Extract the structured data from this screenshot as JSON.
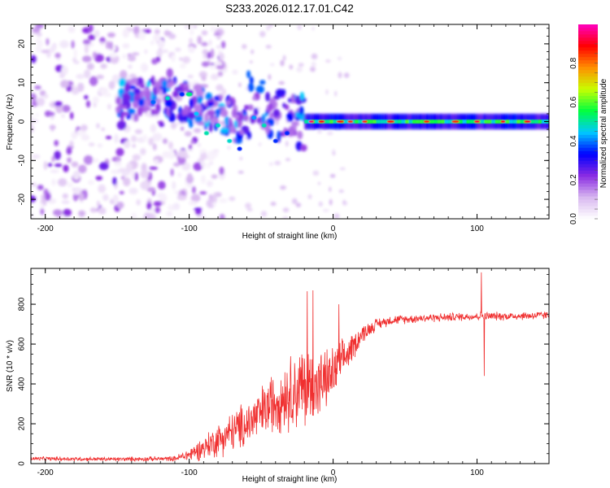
{
  "title": "S233.2026.012.17.01.C42",
  "chart_data": [
    {
      "type": "heatmap",
      "name": "spectrogram",
      "xlabel": "Height of straight line (km)",
      "ylabel": "Frequency (Hz)",
      "xlim": [
        -210,
        150
      ],
      "ylim": [
        -25,
        25
      ],
      "xticks": [
        -200,
        -100,
        0,
        100
      ],
      "xtick_labels": [
        "-200",
        "-100",
        "0",
        "100"
      ],
      "yticks": [
        -20,
        -10,
        0,
        10,
        20
      ],
      "ytick_labels": [
        "-20",
        "-10",
        "0",
        "10",
        "20"
      ],
      "colorbar": {
        "label": "Normalized spectral amplitude",
        "range": [
          0.0,
          1.0
        ],
        "ticks": [
          0.0,
          0.2,
          0.4,
          0.6,
          0.8
        ],
        "tick_labels": [
          "0.0",
          "0.2",
          "0.4",
          "0.6",
          "0.8"
        ],
        "colors": [
          "#ffffff",
          "#d8b8f0",
          "#8a2be2",
          "#0000ff",
          "#00c8ff",
          "#00ff40",
          "#c8ff00",
          "#ff9000",
          "#ff0000",
          "#ff00c0"
        ]
      },
      "features": [
        {
          "region": "noise",
          "x_range": [
            -210,
            -100
          ],
          "y_range": [
            -25,
            25
          ],
          "amplitude": [
            0.02,
            0.25
          ]
        },
        {
          "region": "dispersed-band",
          "x_range": [
            -150,
            -20
          ],
          "y_range": [
            -12,
            10
          ],
          "amplitude": [
            0.15,
            0.45
          ]
        },
        {
          "region": "narrow-band",
          "x_range": [
            -20,
            150
          ],
          "center_hz": 0,
          "halfwidth_hz": 2,
          "amplitude": [
            0.3,
            0.95
          ]
        }
      ]
    },
    {
      "type": "line",
      "name": "snr",
      "xlabel": "Height of straight line (km)",
      "ylabel": "SNR (10 * v/v)",
      "xlim": [
        -210,
        150
      ],
      "ylim": [
        0,
        980
      ],
      "xticks": [
        -200,
        -100,
        0,
        100
      ],
      "xtick_labels": [
        "-200",
        "-100",
        "0",
        "100"
      ],
      "yticks": [
        0,
        200,
        400,
        600,
        800
      ],
      "ytick_labels": [
        "0",
        "200",
        "400",
        "600",
        "800"
      ],
      "color": "#f03030",
      "series": [
        {
          "name": "SNR trend",
          "x": [
            -210,
            -150,
            -110,
            -100,
            -90,
            -80,
            -70,
            -60,
            -50,
            -40,
            -30,
            -20,
            -10,
            0,
            10,
            20,
            30,
            40,
            60,
            80,
            100,
            120,
            150
          ],
          "values": [
            25,
            22,
            25,
            45,
            80,
            120,
            160,
            200,
            250,
            320,
            360,
            380,
            390,
            450,
            550,
            650,
            700,
            720,
            730,
            735,
            740,
            740,
            745
          ],
          "noise_amplitude": [
            12,
            12,
            15,
            40,
            70,
            100,
            120,
            140,
            160,
            190,
            220,
            260,
            200,
            160,
            100,
            55,
            35,
            28,
            25,
            25,
            25,
            25,
            25
          ]
        }
      ],
      "spikes": [
        {
          "x": -18,
          "value": 865
        },
        {
          "x": -14,
          "value": 870
        },
        {
          "x": 4,
          "value": 800
        },
        {
          "x": 103,
          "value": 960
        },
        {
          "x": 105,
          "value": 440
        }
      ]
    }
  ]
}
